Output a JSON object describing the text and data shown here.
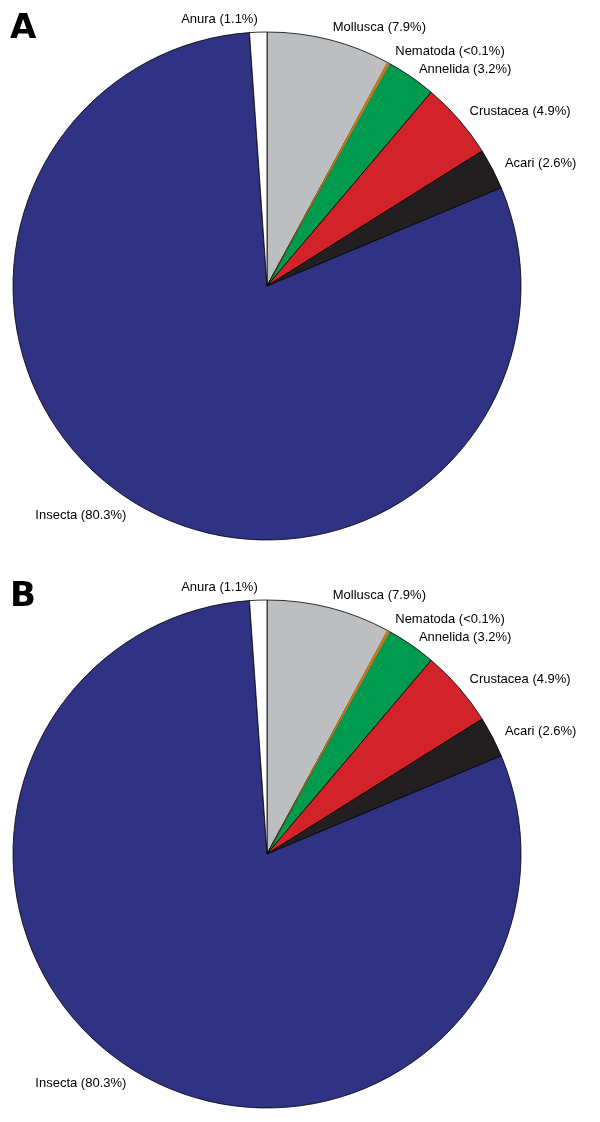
{
  "chart_data": [
    {
      "type": "pie",
      "title": "A",
      "categories": [
        "Mollusca",
        "Nematoda",
        "Annelida",
        "Crustacea",
        "Acari",
        "Insecta",
        "Anura"
      ],
      "values": [
        7.9,
        0.1,
        3.2,
        4.9,
        2.6,
        80.3,
        1.1
      ],
      "value_labels": [
        "(7.9%)",
        "(<0.1%)",
        "(3.2%)",
        "(4.9%)",
        "(2.6%)",
        "(80.3%)",
        "(1.1%)"
      ],
      "colors": [
        "#bcbec0",
        "#c8781e",
        "#009a4e",
        "#d2232a",
        "#231f20",
        "#303283",
        "#ffffff"
      ]
    },
    {
      "type": "pie",
      "title": "B",
      "categories": [
        "Mollusca",
        "Nematoda",
        "Annelida",
        "Crustacea",
        "Acari",
        "Insecta",
        "Anura"
      ],
      "values": [
        7.9,
        0.1,
        3.2,
        4.9,
        2.6,
        80.3,
        1.1
      ],
      "value_labels": [
        "(7.9%)",
        "(<0.1%)",
        "(3.2%)",
        "(4.9%)",
        "(2.6%)",
        "(80.3%)",
        "(1.1%)"
      ],
      "colors": [
        "#bcbec0",
        "#c8781e",
        "#009a4e",
        "#d2232a",
        "#231f20",
        "#303283",
        "#ffffff"
      ]
    }
  ]
}
